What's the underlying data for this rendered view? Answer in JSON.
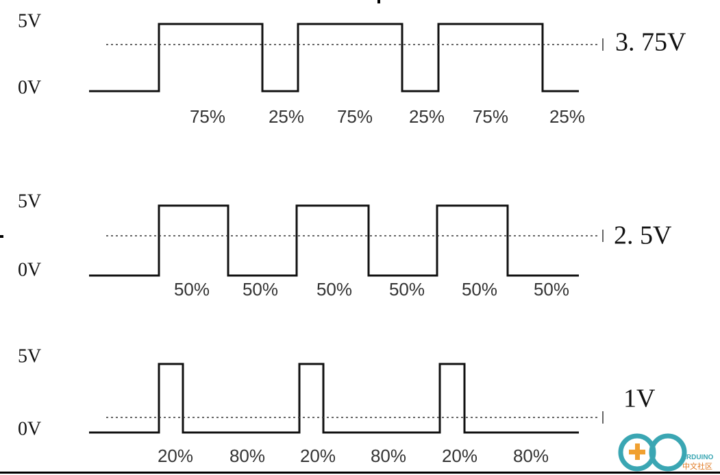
{
  "panels": [
    {
      "high_label": "5V",
      "low_label": "0V",
      "average_label": "3. 75V",
      "duty_labels": [
        "75%",
        "25%",
        "75%",
        "25%",
        "75%",
        "25%"
      ]
    },
    {
      "high_label": "5V",
      "low_label": "0V",
      "average_label": "2. 5V",
      "duty_labels": [
        "50%",
        "50%",
        "50%",
        "50%",
        "50%",
        "50%"
      ]
    },
    {
      "high_label": "5V",
      "low_label": "0V",
      "average_label": "1V",
      "duty_labels": [
        "20%",
        "80%",
        "20%",
        "80%",
        "20%",
        "80%"
      ]
    }
  ],
  "logo": {
    "name": "ARDUINO",
    "subtitle": "中文社区"
  }
}
